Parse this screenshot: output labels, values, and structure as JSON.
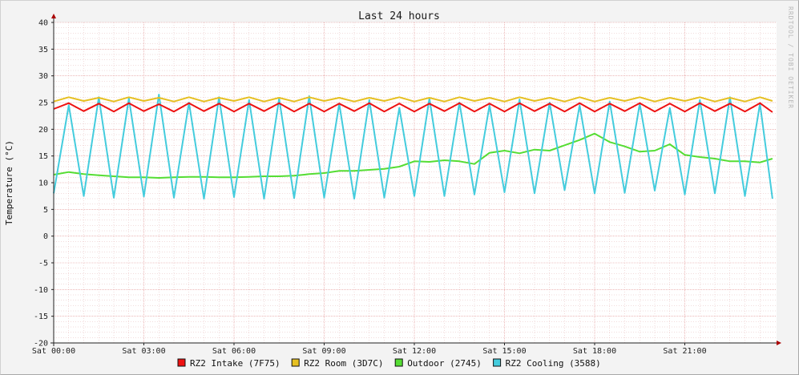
{
  "watermark": "RRDTOOL / TOBI OETIKER",
  "chart_data": {
    "type": "line",
    "title": "Last 24 hours",
    "ylabel": "Temperature (°C)",
    "xlabel": "",
    "ylim": [
      -20,
      40
    ],
    "yticks": [
      40,
      35,
      30,
      25,
      20,
      15,
      10,
      5,
      0,
      -5,
      -10,
      -15,
      -20
    ],
    "xlim": [
      "Sat 00:00",
      "Sun 00:00"
    ],
    "xticks": [
      "Sat 00:00",
      "Sat 03:00",
      "Sat 06:00",
      "Sat 09:00",
      "Sat 12:00",
      "Sat 15:00",
      "Sat 18:00",
      "Sat 21:00"
    ],
    "grid": true,
    "legend_position": "bottom",
    "x": [
      "00:00",
      "00:30",
      "01:00",
      "01:30",
      "02:00",
      "02:30",
      "03:00",
      "03:30",
      "04:00",
      "04:30",
      "05:00",
      "05:30",
      "06:00",
      "06:30",
      "07:00",
      "07:30",
      "08:00",
      "08:30",
      "09:00",
      "09:30",
      "10:00",
      "10:30",
      "11:00",
      "11:30",
      "12:00",
      "12:30",
      "13:00",
      "13:30",
      "14:00",
      "14:30",
      "15:00",
      "15:30",
      "16:00",
      "16:30",
      "17:00",
      "17:30",
      "18:00",
      "18:30",
      "19:00",
      "19:30",
      "20:00",
      "20:30",
      "21:00",
      "21:30",
      "22:00",
      "22:30",
      "23:00",
      "23:30",
      "23:55"
    ],
    "series": [
      {
        "name": "RZ2 Intake (7F75)",
        "color": "#ee1111",
        "values": [
          23.8,
          24.9,
          23.4,
          24.8,
          23.3,
          24.9,
          23.4,
          24.7,
          23.3,
          24.9,
          23.4,
          24.8,
          23.3,
          24.8,
          23.4,
          24.9,
          23.3,
          24.8,
          23.3,
          24.8,
          23.4,
          24.9,
          23.3,
          24.8,
          23.3,
          24.8,
          23.4,
          24.9,
          23.3,
          24.8,
          23.3,
          24.9,
          23.4,
          24.8,
          23.3,
          24.9,
          23.3,
          24.8,
          23.4,
          24.9,
          23.3,
          24.8,
          23.3,
          24.9,
          23.4,
          24.8,
          23.3,
          24.9,
          23.2
        ]
      },
      {
        "name": "RZ2 Room (3D7C)",
        "color": "#e6c021",
        "values": [
          25.2,
          26.0,
          25.3,
          25.9,
          25.2,
          26.0,
          25.3,
          25.9,
          25.2,
          26.0,
          25.2,
          25.9,
          25.3,
          26.0,
          25.2,
          25.9,
          25.2,
          26.0,
          25.3,
          25.9,
          25.2,
          25.9,
          25.3,
          26.0,
          25.2,
          25.9,
          25.2,
          26.0,
          25.3,
          25.9,
          25.2,
          26.0,
          25.3,
          25.9,
          25.2,
          26.0,
          25.2,
          25.9,
          25.3,
          26.0,
          25.2,
          25.9,
          25.3,
          26.0,
          25.2,
          25.9,
          25.2,
          26.0,
          25.3
        ]
      },
      {
        "name": "Outdoor (2745)",
        "color": "#55dd33",
        "values": [
          11.5,
          12.0,
          11.6,
          11.4,
          11.2,
          11.0,
          11.0,
          10.9,
          11.0,
          11.1,
          11.1,
          11.0,
          11.0,
          11.1,
          11.2,
          11.2,
          11.3,
          11.6,
          11.8,
          12.2,
          12.2,
          12.4,
          12.6,
          13.0,
          14.0,
          13.9,
          14.2,
          14.0,
          13.5,
          15.6,
          16.0,
          15.5,
          16.2,
          16.0,
          17.0,
          18.0,
          19.2,
          17.6,
          16.8,
          15.8,
          16.0,
          17.2,
          15.2,
          14.8,
          14.5,
          14.0,
          14.0,
          13.8,
          14.5
        ]
      },
      {
        "name": "RZ2 Cooling (3588)",
        "color": "#44ccdd",
        "values": [
          8.0,
          24.5,
          7.5,
          26.0,
          7.2,
          25.8,
          7.4,
          26.5,
          7.2,
          25.0,
          7.0,
          26.0,
          7.3,
          25.5,
          7.0,
          25.8,
          7.1,
          26.2,
          7.2,
          24.8,
          7.0,
          25.5,
          7.2,
          24.0,
          7.5,
          25.8,
          7.5,
          25.0,
          7.8,
          24.5,
          8.2,
          25.6,
          8.0,
          25.0,
          8.6,
          24.5,
          8.0,
          25.2,
          8.1,
          24.8,
          8.5,
          24.0,
          7.8,
          25.5,
          8.0,
          26.0,
          7.5,
          24.8,
          7.0
        ]
      }
    ]
  }
}
